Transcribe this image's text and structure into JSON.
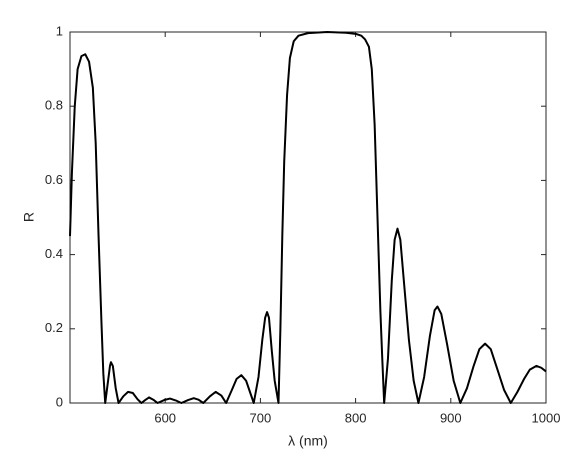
{
  "chart_data": {
    "type": "line",
    "x_label": "λ (nm)",
    "y_label": "R",
    "x": [
      500,
      502,
      505,
      508,
      512,
      516,
      520,
      524,
      527,
      530,
      533,
      535,
      537,
      540,
      542,
      543,
      545,
      548,
      551,
      556,
      561,
      566,
      571,
      575,
      579,
      583,
      588,
      592,
      599,
      605,
      611,
      617,
      624,
      630,
      635,
      640,
      647,
      653,
      659,
      664,
      670,
      675,
      680,
      685,
      689,
      693,
      698,
      702,
      705,
      707,
      709,
      712,
      715,
      719,
      721,
      723,
      725,
      728,
      731,
      735,
      740,
      750,
      770,
      790,
      800,
      806,
      810,
      814,
      817,
      820,
      823,
      826,
      828,
      830,
      834,
      838,
      841,
      844,
      847,
      851,
      856,
      861,
      866,
      872,
      878,
      883,
      886,
      890,
      896,
      903,
      910,
      917,
      924,
      930,
      936,
      942,
      949,
      956,
      963,
      970,
      977,
      983,
      990,
      995,
      1000
    ],
    "values": [
      0.45,
      0.62,
      0.8,
      0.9,
      0.935,
      0.94,
      0.92,
      0.85,
      0.7,
      0.45,
      0.22,
      0.08,
      0,
      0.06,
      0.1,
      0.11,
      0.1,
      0.04,
      0,
      0.018,
      0.03,
      0.027,
      0.01,
      0,
      0.008,
      0.015,
      0.008,
      0,
      0.008,
      0.012,
      0.007,
      0,
      0.008,
      0.013,
      0.009,
      0,
      0.018,
      0.03,
      0.02,
      0,
      0.035,
      0.065,
      0.075,
      0.06,
      0.03,
      0,
      0.07,
      0.17,
      0.23,
      0.245,
      0.23,
      0.14,
      0.06,
      0,
      0.2,
      0.45,
      0.65,
      0.83,
      0.93,
      0.975,
      0.99,
      0.997,
      1,
      0.998,
      0.995,
      0.99,
      0.98,
      0.96,
      0.9,
      0.75,
      0.5,
      0.25,
      0.12,
      0,
      0.12,
      0.33,
      0.44,
      0.47,
      0.44,
      0.32,
      0.17,
      0.06,
      0,
      0.07,
      0.18,
      0.25,
      0.26,
      0.24,
      0.16,
      0.06,
      0,
      0.04,
      0.1,
      0.145,
      0.16,
      0.145,
      0.09,
      0.035,
      0,
      0.03,
      0.065,
      0.09,
      0.1,
      0.095,
      0.085
    ],
    "color": "#000000",
    "xlim": [
      500,
      1000
    ],
    "xticks": [
      600,
      700,
      800,
      900,
      1000
    ],
    "ylim": [
      0,
      1
    ],
    "yticks": [
      0,
      0.2,
      0.4,
      0.6,
      0.8,
      1
    ],
    "grid": false
  }
}
